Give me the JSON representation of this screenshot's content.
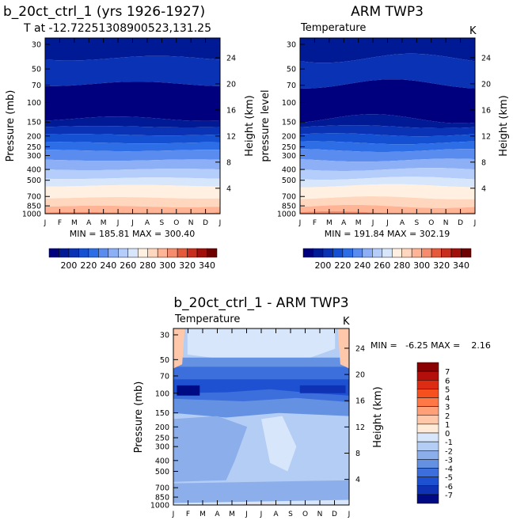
{
  "chart_data": [
    {
      "type": "heatmap",
      "title": "b_20ct_ctrl_1 (yrs 1926-1927)",
      "subtitle": "T at -12.72251308900523,131.25",
      "variable_label": "",
      "units_label": "",
      "xlabel": "",
      "ylabel": "Pressure (mb)",
      "ylabel_right": "Height (km)",
      "x": [
        "J",
        "F",
        "M",
        "A",
        "M",
        "J",
        "J",
        "A",
        "S",
        "O",
        "N",
        "D",
        "J"
      ],
      "y_ticks": [
        30,
        50,
        70,
        100,
        150,
        200,
        250,
        300,
        400,
        500,
        700,
        850,
        1000
      ],
      "y_ticks_right": [
        24,
        20,
        16,
        12,
        8,
        4
      ],
      "stats": "MIN = 185.81 MAX = 300.40",
      "min": 185.81,
      "max": 300.4,
      "colorbar": {
        "levels": [
          190,
          200,
          210,
          220,
          230,
          240,
          250,
          260,
          270,
          280,
          290,
          300,
          310,
          320,
          330,
          340
        ],
        "labels": [
          "200",
          "220",
          "240",
          "260",
          "280",
          "300",
          "320",
          "340"
        ],
        "colors": [
          "#00007f",
          "#001a96",
          "#0a32b4",
          "#1450d2",
          "#2d6ee6",
          "#5a8cf0",
          "#8caff5",
          "#b4cdfa",
          "#d7e6fa",
          "#fff0e1",
          "#ffd7be",
          "#ffb496",
          "#f58c6e",
          "#e65a3c",
          "#c82d1e",
          "#a00f0a",
          "#6e0000"
        ]
      }
    },
    {
      "type": "heatmap",
      "title": "ARM TWP3",
      "variable_label": "Temperature",
      "units_label": "K",
      "xlabel": "",
      "ylabel": "pressure level",
      "ylabel_right": "Height (km)",
      "x": [
        "J",
        "F",
        "M",
        "A",
        "M",
        "J",
        "J",
        "A",
        "S",
        "O",
        "N",
        "D",
        "J"
      ],
      "y_ticks": [
        30,
        50,
        70,
        100,
        150,
        200,
        250,
        300,
        400,
        500,
        700,
        850,
        1000
      ],
      "y_ticks_right": [
        24,
        20,
        16,
        12,
        8,
        4
      ],
      "stats": "MIN = 191.84 MAX = 302.19",
      "min": 191.84,
      "max": 302.19,
      "colorbar": {
        "levels": [
          190,
          200,
          210,
          220,
          230,
          240,
          250,
          260,
          270,
          280,
          290,
          300,
          310,
          320,
          330,
          340
        ],
        "labels": [
          "200",
          "220",
          "240",
          "260",
          "280",
          "300",
          "320",
          "340"
        ],
        "colors": [
          "#00007f",
          "#001a96",
          "#0a32b4",
          "#1450d2",
          "#2d6ee6",
          "#5a8cf0",
          "#8caff5",
          "#b4cdfa",
          "#d7e6fa",
          "#fff0e1",
          "#ffd7be",
          "#ffb496",
          "#f58c6e",
          "#e65a3c",
          "#c82d1e",
          "#a00f0a",
          "#6e0000"
        ]
      }
    },
    {
      "type": "heatmap",
      "title": "b_20ct_ctrl_1 - ARM TWP3",
      "variable_label": "Temperature",
      "units_label": "K",
      "xlabel": "",
      "ylabel": "Pressure (mb)",
      "ylabel_right": "Height (km)",
      "x": [
        "J",
        "F",
        "M",
        "A",
        "M",
        "J",
        "J",
        "A",
        "S",
        "O",
        "N",
        "D",
        "J"
      ],
      "y_ticks": [
        30,
        50,
        70,
        100,
        150,
        200,
        250,
        300,
        400,
        500,
        700,
        850,
        1000
      ],
      "y_ticks_right": [
        24,
        20,
        16,
        12,
        8,
        4
      ],
      "stats": "MIN =   -6.25 MAX =    2.16",
      "min": -6.25,
      "max": 2.16,
      "colorbar": {
        "labels": [
          "7",
          "6",
          "5",
          "4",
          "3",
          "2",
          "1",
          "0",
          "-1",
          "-2",
          "-3",
          "-4",
          "-5",
          "-6",
          "-7"
        ],
        "colors": [
          "#8b0000",
          "#b40f0a",
          "#dc2d14",
          "#f5501e",
          "#ff7846",
          "#ffa078",
          "#ffc8aa",
          "#ffebd7",
          "#d7e6fa",
          "#b4cdf5",
          "#8cafeb",
          "#6491e1",
          "#3c6edc",
          "#1e50d2",
          "#0f32b4",
          "#000a82"
        ]
      }
    }
  ]
}
